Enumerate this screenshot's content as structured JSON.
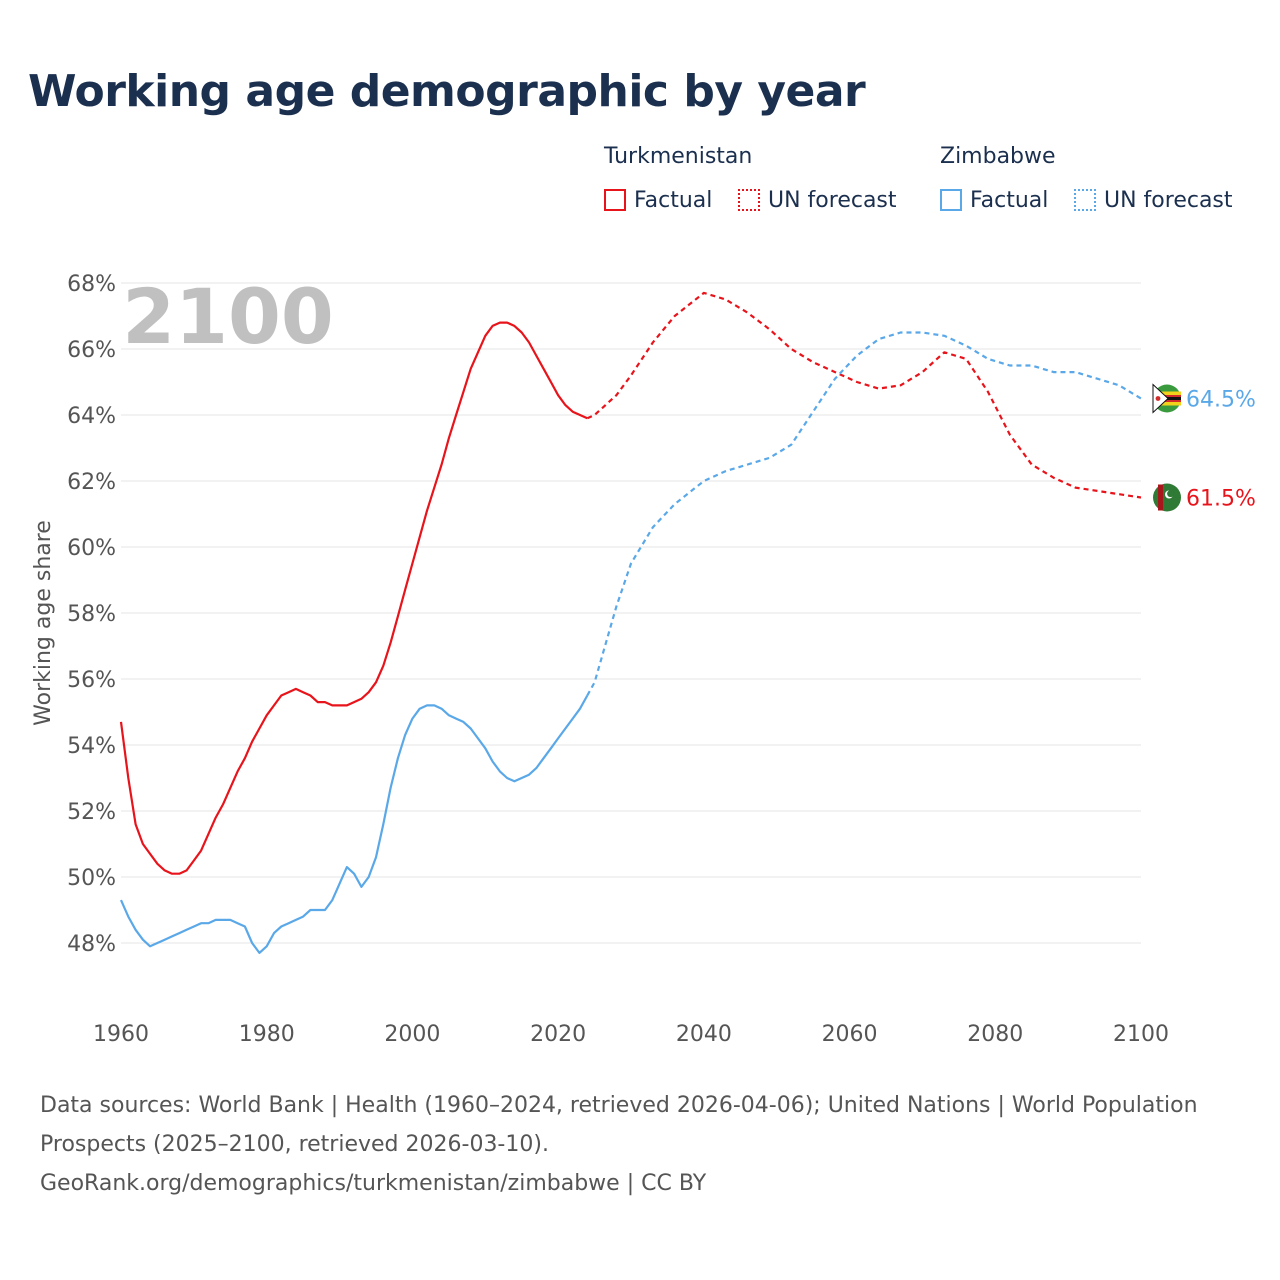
{
  "title": "Working age demographic by year",
  "legend": {
    "groups": [
      {
        "name": "Turkmenistan",
        "items": [
          "Factual",
          "UN forecast"
        ]
      },
      {
        "name": "Zimbabwe",
        "items": [
          "Factual",
          "UN forecast"
        ]
      }
    ]
  },
  "colors": {
    "turkmenistan": "#e8141b",
    "zimbabwe": "#5aa8e8",
    "grid": "#e6e6e6",
    "year_watermark": "#c0c0c0"
  },
  "footer": {
    "sources": "Data sources: World Bank | Health (1960–2024, retrieved 2026-04-06); United Nations | World Population Prospects (2025–2100, retrieved 2026-03-10).",
    "link": "GeoRank.org/demographics/turkmenistan/zimbabwe | CC BY"
  },
  "chart_data": {
    "type": "line",
    "title": "Working age demographic by year",
    "year_label": "2100",
    "xlabel": "",
    "ylabel": "Working age share",
    "xlim": [
      1960,
      2100
    ],
    "ylim": [
      46.8,
      68.2
    ],
    "xticks": [
      1960,
      1980,
      2000,
      2020,
      2040,
      2060,
      2080,
      2100
    ],
    "xtick_labels": [
      "1960",
      "1980",
      "2000",
      "2020",
      "2040",
      "2060",
      "2080",
      "2100"
    ],
    "yticks": [
      48,
      50,
      52,
      54,
      56,
      58,
      60,
      62,
      64,
      66,
      68
    ],
    "ytick_labels": [
      "48%",
      "50%",
      "52%",
      "54%",
      "56%",
      "58%",
      "60%",
      "62%",
      "64%",
      "66%",
      "68%"
    ],
    "grid": true,
    "factual_range": [
      1960,
      2024
    ],
    "forecast_range": [
      2025,
      2100
    ],
    "series": [
      {
        "name": "Turkmenistan",
        "end_label": "61.5%",
        "x": [
          1960,
          1961,
          1962,
          1963,
          1964,
          1965,
          1966,
          1967,
          1968,
          1969,
          1970,
          1971,
          1972,
          1973,
          1974,
          1975,
          1976,
          1977,
          1978,
          1979,
          1980,
          1981,
          1982,
          1983,
          1984,
          1985,
          1986,
          1987,
          1988,
          1989,
          1990,
          1991,
          1992,
          1993,
          1994,
          1995,
          1996,
          1997,
          1998,
          1999,
          2000,
          2001,
          2002,
          2003,
          2004,
          2005,
          2006,
          2007,
          2008,
          2009,
          2010,
          2011,
          2012,
          2013,
          2014,
          2015,
          2016,
          2017,
          2018,
          2019,
          2020,
          2021,
          2022,
          2023,
          2024,
          2025,
          2028,
          2030,
          2033,
          2036,
          2040,
          2043,
          2046,
          2049,
          2052,
          2055,
          2058,
          2061,
          2064,
          2067,
          2070,
          2073,
          2076,
          2079,
          2082,
          2085,
          2088,
          2091,
          2094,
          2097,
          2100
        ],
        "values": [
          54.7,
          53.0,
          51.6,
          51.0,
          50.7,
          50.4,
          50.2,
          50.1,
          50.1,
          50.2,
          50.5,
          50.8,
          51.3,
          51.8,
          52.2,
          52.7,
          53.2,
          53.6,
          54.1,
          54.5,
          54.9,
          55.2,
          55.5,
          55.6,
          55.7,
          55.6,
          55.5,
          55.3,
          55.3,
          55.2,
          55.2,
          55.2,
          55.3,
          55.4,
          55.6,
          55.9,
          56.4,
          57.1,
          57.9,
          58.7,
          59.5,
          60.3,
          61.1,
          61.8,
          62.5,
          63.3,
          64.0,
          64.7,
          65.4,
          65.9,
          66.4,
          66.7,
          66.8,
          66.8,
          66.7,
          66.5,
          66.2,
          65.8,
          65.4,
          65.0,
          64.6,
          64.3,
          64.1,
          64.0,
          63.9,
          64.0,
          64.6,
          65.2,
          66.2,
          67.0,
          67.7,
          67.5,
          67.1,
          66.6,
          66.0,
          65.6,
          65.3,
          65.0,
          64.8,
          64.9,
          65.3,
          65.9,
          65.7,
          64.7,
          63.4,
          62.5,
          62.1,
          61.8,
          61.7,
          61.6,
          61.5
        ]
      },
      {
        "name": "Zimbabwe",
        "end_label": "64.5%",
        "x": [
          1960,
          1961,
          1962,
          1963,
          1964,
          1965,
          1966,
          1967,
          1968,
          1969,
          1970,
          1971,
          1972,
          1973,
          1974,
          1975,
          1976,
          1977,
          1978,
          1979,
          1980,
          1981,
          1982,
          1983,
          1984,
          1985,
          1986,
          1987,
          1988,
          1989,
          1990,
          1991,
          1992,
          1993,
          1994,
          1995,
          1996,
          1997,
          1998,
          1999,
          2000,
          2001,
          2002,
          2003,
          2004,
          2005,
          2006,
          2007,
          2008,
          2009,
          2010,
          2011,
          2012,
          2013,
          2014,
          2015,
          2016,
          2017,
          2018,
          2019,
          2020,
          2021,
          2022,
          2023,
          2024,
          2025,
          2028,
          2030,
          2033,
          2036,
          2040,
          2043,
          2046,
          2049,
          2052,
          2055,
          2058,
          2061,
          2064,
          2067,
          2070,
          2073,
          2076,
          2079,
          2082,
          2085,
          2088,
          2091,
          2094,
          2097,
          2100
        ],
        "values": [
          49.3,
          48.8,
          48.4,
          48.1,
          47.9,
          48.0,
          48.1,
          48.2,
          48.3,
          48.4,
          48.5,
          48.6,
          48.6,
          48.7,
          48.7,
          48.7,
          48.6,
          48.5,
          48.0,
          47.7,
          47.9,
          48.3,
          48.5,
          48.6,
          48.7,
          48.8,
          49.0,
          49.0,
          49.0,
          49.3,
          49.8,
          50.3,
          50.1,
          49.7,
          50.0,
          50.6,
          51.6,
          52.7,
          53.6,
          54.3,
          54.8,
          55.1,
          55.2,
          55.2,
          55.1,
          54.9,
          54.8,
          54.7,
          54.5,
          54.2,
          53.9,
          53.5,
          53.2,
          53.0,
          52.9,
          53.0,
          53.1,
          53.3,
          53.6,
          53.9,
          54.2,
          54.5,
          54.8,
          55.1,
          55.5,
          55.9,
          58.2,
          59.5,
          60.6,
          61.3,
          62.0,
          62.3,
          62.5,
          62.7,
          63.1,
          64.1,
          65.1,
          65.8,
          66.3,
          66.5,
          66.5,
          66.4,
          66.1,
          65.7,
          65.5,
          65.5,
          65.3,
          65.3,
          65.1,
          64.9,
          64.5
        ]
      }
    ]
  }
}
